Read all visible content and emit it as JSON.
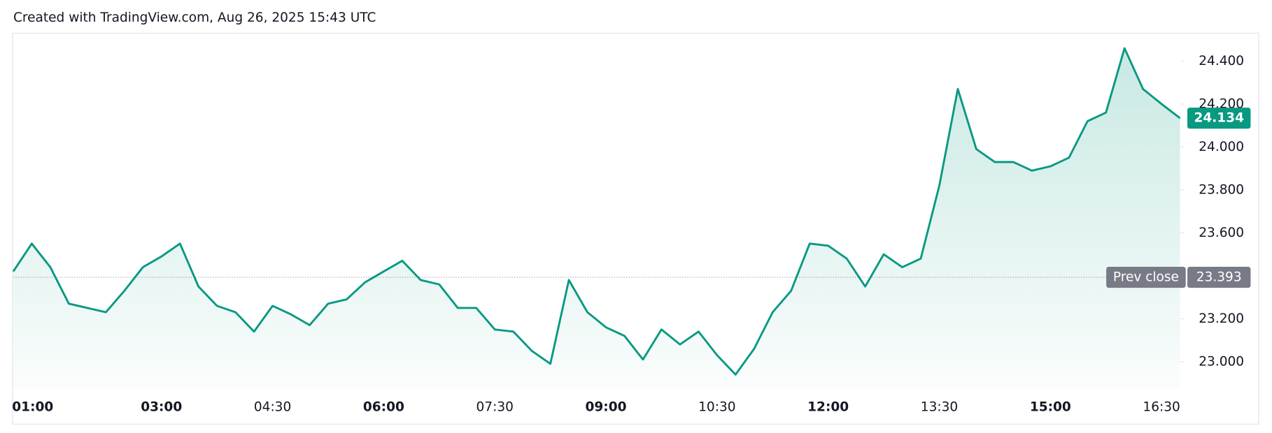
{
  "chart_data": {
    "type": "area",
    "title": "Created with TradingView.com, Aug 26, 2025 15:43 UTC",
    "categories": [
      "01:00",
      "01:15",
      "01:30",
      "01:45",
      "02:00",
      "02:15",
      "02:30",
      "02:45",
      "03:00",
      "03:15",
      "03:30",
      "03:45",
      "04:00",
      "04:15",
      "04:30",
      "04:45",
      "05:00",
      "05:15",
      "05:30",
      "05:45",
      "06:00",
      "06:15",
      "06:30",
      "06:45",
      "07:00",
      "07:15",
      "07:30",
      "07:45",
      "08:00",
      "08:15",
      "08:30",
      "08:45",
      "09:00",
      "09:15",
      "09:30",
      "09:45",
      "10:00",
      "10:15",
      "10:30",
      "10:45",
      "11:00",
      "11:15",
      "11:30",
      "11:45",
      "12:00",
      "12:15",
      "12:30",
      "12:45",
      "13:00",
      "13:15",
      "13:30",
      "13:45",
      "14:00",
      "14:15",
      "14:30",
      "14:45",
      "15:00",
      "15:15",
      "15:30",
      "15:45",
      "16:00",
      "16:15",
      "16:30",
      "16:45"
    ],
    "series": [
      {
        "color": "#089981",
        "values": [
          23.42,
          23.55,
          23.44,
          23.27,
          23.25,
          23.23,
          23.33,
          23.44,
          23.49,
          23.55,
          23.35,
          23.26,
          23.23,
          23.14,
          23.26,
          23.22,
          23.17,
          23.27,
          23.29,
          23.37,
          23.42,
          23.47,
          23.38,
          23.36,
          23.25,
          23.25,
          23.15,
          23.14,
          23.05,
          22.99,
          23.38,
          23.23,
          23.16,
          23.12,
          23.01,
          23.15,
          23.08,
          23.14,
          23.03,
          22.94,
          23.06,
          23.23,
          23.33,
          23.55,
          23.54,
          23.48,
          23.35,
          23.5,
          23.44,
          23.48,
          23.82,
          24.27,
          23.99,
          23.93,
          23.93,
          23.89,
          23.91,
          23.95,
          24.12,
          24.16,
          24.46,
          24.27,
          24.2,
          24.134
        ]
      }
    ],
    "xticks": [
      "01:00",
      "03:00",
      "04:30",
      "06:00",
      "07:30",
      "09:00",
      "10:30",
      "12:00",
      "13:30",
      "15:00",
      "16:30"
    ],
    "ylim": [
      22.875,
      24.53
    ],
    "yticks": [
      {
        "value": 23,
        "label": "23.000"
      },
      {
        "value": 23.2,
        "label": "23.200"
      },
      {
        "value": 23.4,
        "label": "23.400"
      },
      {
        "value": 23.6,
        "label": "23.600"
      },
      {
        "value": 23.8,
        "label": "23.800"
      },
      {
        "value": 24,
        "label": "24.000"
      },
      {
        "value": 24.2,
        "label": "24.200"
      },
      {
        "value": 24.4,
        "label": "24.400"
      }
    ],
    "grid": false,
    "prev_close_label": "Prev close",
    "prev_close": 23.393,
    "prev_close_color": "#787b86"
  }
}
